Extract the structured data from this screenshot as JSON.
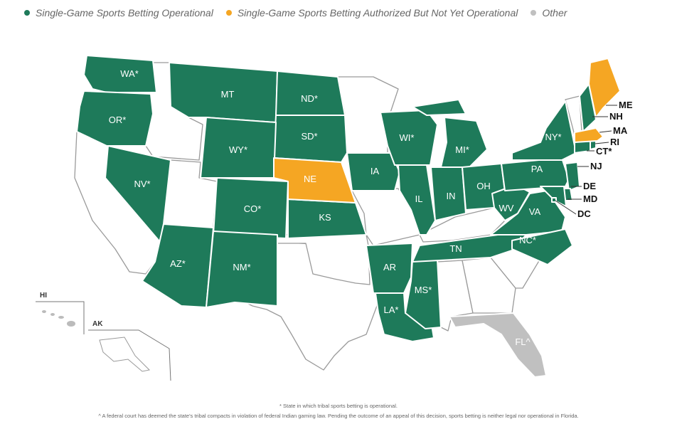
{
  "legend": [
    {
      "label": "Single-Game Sports Betting Operational",
      "color": "#1e7a5a"
    },
    {
      "label": "Single-Game Sports Betting Authorized But Not Yet Operational",
      "color": "#f5a623"
    },
    {
      "label": "Other",
      "color": "#c0c0c0"
    }
  ],
  "colors": {
    "operational": "#1e7a5a",
    "authorized": "#f5a623",
    "other": "#c0c0c0",
    "none": "#ffffff"
  },
  "states": {
    "WA": {
      "label": "WA*",
      "status": "operational"
    },
    "OR": {
      "label": "OR*",
      "status": "operational"
    },
    "MT": {
      "label": "MT",
      "status": "operational"
    },
    "ND": {
      "label": "ND*",
      "status": "operational"
    },
    "SD": {
      "label": "SD*",
      "status": "operational"
    },
    "WY": {
      "label": "WY*",
      "status": "operational"
    },
    "NE": {
      "label": "NE",
      "status": "authorized"
    },
    "NV": {
      "label": "NV*",
      "status": "operational"
    },
    "CO": {
      "label": "CO*",
      "status": "operational"
    },
    "KS": {
      "label": "KS",
      "status": "operational"
    },
    "IA": {
      "label": "IA",
      "status": "operational"
    },
    "AZ": {
      "label": "AZ*",
      "status": "operational"
    },
    "NM": {
      "label": "NM*",
      "status": "operational"
    },
    "AR": {
      "label": "AR",
      "status": "operational"
    },
    "LA": {
      "label": "LA*",
      "status": "operational"
    },
    "MS": {
      "label": "MS*",
      "status": "operational"
    },
    "TN": {
      "label": "TN",
      "status": "operational"
    },
    "IL": {
      "label": "IL",
      "status": "operational"
    },
    "IN": {
      "label": "IN",
      "status": "operational"
    },
    "WI": {
      "label": "WI*",
      "status": "operational"
    },
    "MI": {
      "label": "MI*",
      "status": "operational"
    },
    "OH": {
      "label": "OH",
      "status": "operational"
    },
    "WV": {
      "label": "WV",
      "status": "operational"
    },
    "VA": {
      "label": "VA",
      "status": "operational"
    },
    "NC": {
      "label": "NC*",
      "status": "operational"
    },
    "PA": {
      "label": "PA",
      "status": "operational"
    },
    "NY": {
      "label": "NY*",
      "status": "operational"
    },
    "FL": {
      "label": "FL^",
      "status": "other"
    },
    "ME": {
      "label": "ME",
      "status": "authorized"
    },
    "NH": {
      "label": "NH",
      "status": "operational"
    },
    "MA": {
      "label": "MA",
      "status": "authorized"
    },
    "RI": {
      "label": "RI",
      "status": "operational"
    },
    "CT": {
      "label": "CT*",
      "status": "operational"
    },
    "NJ": {
      "label": "NJ",
      "status": "operational"
    },
    "DE": {
      "label": "DE",
      "status": "operational"
    },
    "MD": {
      "label": "MD",
      "status": "operational"
    },
    "DC": {
      "label": "DC",
      "status": "operational"
    }
  },
  "insets": {
    "hi": "HI",
    "ak": "AK"
  },
  "footnotes": {
    "tribal": "* State in which tribal sports betting is operational.",
    "florida": "^ A federal court has deemed the state's tribal compacts in violation of federal Indian gaming law. Pending the outcome of an appeal of this decision, sports betting is neither legal nor operational in Florida."
  }
}
